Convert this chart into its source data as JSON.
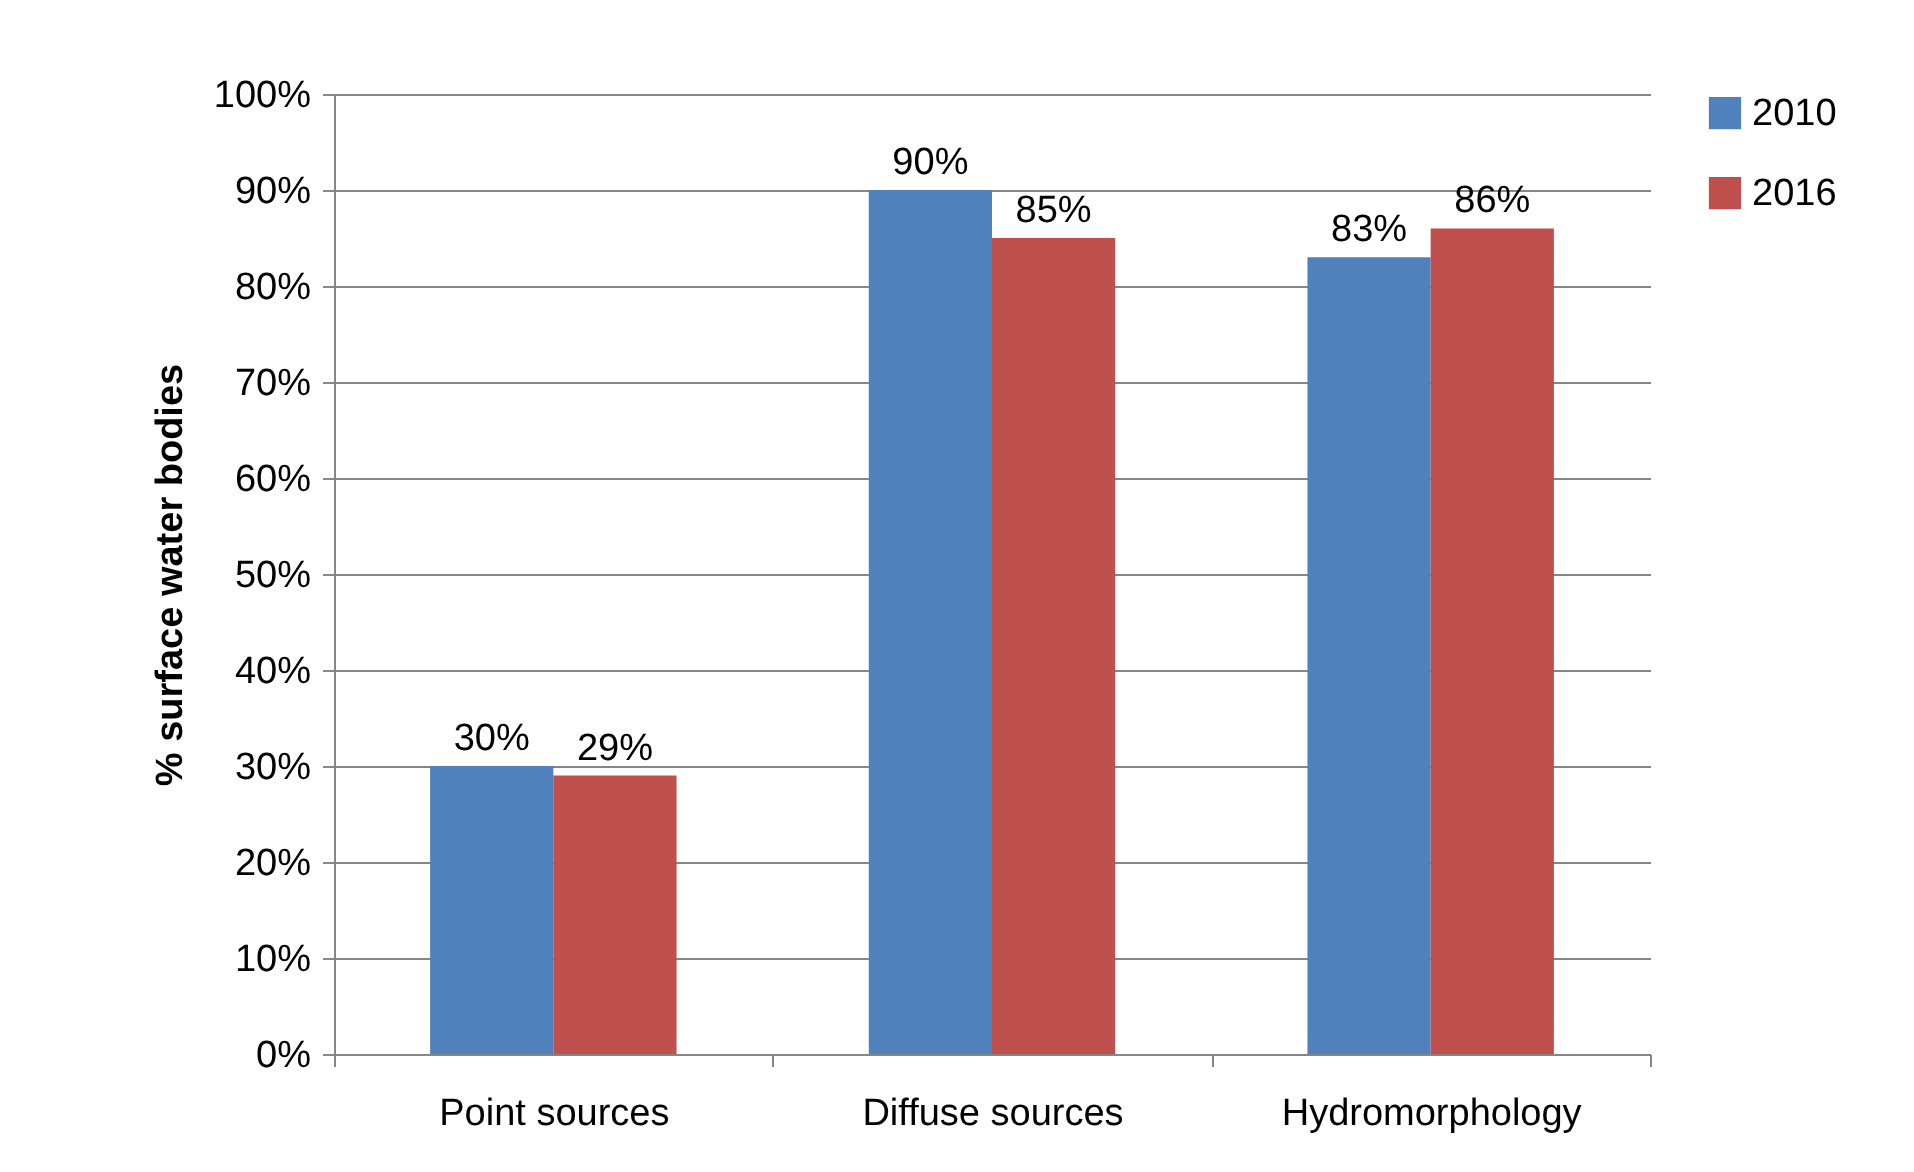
{
  "chart_data": {
    "type": "bar",
    "ylabel": "% surface water bodies",
    "categories": [
      "Point sources",
      "Diffuse sources",
      "Hydromorphology"
    ],
    "series": [
      {
        "name": "2010",
        "color": "#4f81bd",
        "values": [
          30,
          90,
          83
        ],
        "value_labels": [
          "30%",
          "90%",
          "83%"
        ]
      },
      {
        "name": "2016",
        "color": "#c0504d",
        "values": [
          29,
          85,
          86
        ],
        "value_labels": [
          "29%",
          "85%",
          "86%"
        ]
      }
    ],
    "ylim": [
      0,
      100
    ],
    "yticks": [
      {
        "value": 0,
        "label": "0%"
      },
      {
        "value": 10,
        "label": "10%"
      },
      {
        "value": 20,
        "label": "20%"
      },
      {
        "value": 30,
        "label": "30%"
      },
      {
        "value": 40,
        "label": "40%"
      },
      {
        "value": 50,
        "label": "50%"
      },
      {
        "value": 60,
        "label": "60%"
      },
      {
        "value": 70,
        "label": "70%"
      },
      {
        "value": 80,
        "label": "80%"
      },
      {
        "value": 90,
        "label": "90%"
      },
      {
        "value": 100,
        "label": "100%"
      }
    ],
    "grid": "y",
    "legend": "right"
  }
}
